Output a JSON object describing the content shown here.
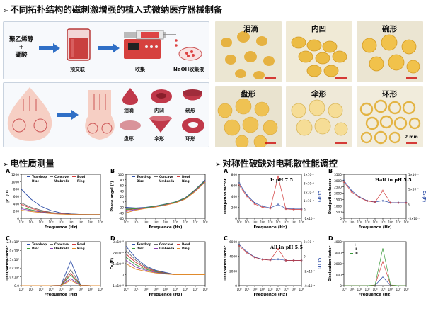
{
  "titles": {
    "main": "不同拓扑结构的磁刺激增强的植入式微纳医疗器械制备",
    "left_section": "电性质测量",
    "right_section": "对称性破缺对电耗散性能调控",
    "arrow": "➢"
  },
  "process": {
    "material_line1": "聚乙烯醇",
    "material_plus": "+",
    "material_line2": "硼酸",
    "step_precrosslink": "预交联",
    "step_collect": "收集",
    "step_naoh": "NaOH收集液"
  },
  "shapes": [
    "泪滴",
    "内凹",
    "碗形",
    "盘形",
    "伞形",
    "环形"
  ],
  "photos": {
    "labels": [
      "泪滴",
      "内凹",
      "碗形",
      "盘形",
      "伞形",
      "环形"
    ],
    "scale": "2 mm"
  },
  "colors": {
    "accent": "#c0394a",
    "photo_bg": "#ede6c8",
    "particle": "#e8b23a"
  },
  "left_charts": [
    {
      "letter": "A",
      "type": "line",
      "ylabel": "|Z| (Ω)",
      "xlabel": "Frequence (Hz)",
      "yticks": [
        "0",
        "200",
        "400",
        "600",
        "800",
        "1000",
        "1200"
      ],
      "xticks": [
        "10⁰",
        "10¹",
        "10²",
        "10³",
        "10⁴",
        "10⁵",
        "10⁶",
        "10⁷",
        "10⁸"
      ],
      "legend": [
        "Teardrop",
        "Concave",
        "Bowl",
        "Disc",
        "Umbrella",
        "Ring"
      ]
    },
    {
      "letter": "B",
      "type": "line",
      "ylabel": "Phase angel (°)",
      "xlabel": "Frequence (Hz)",
      "yticks": [
        "-60",
        "-40",
        "-20",
        "0",
        "20",
        "40",
        "60",
        "80",
        "100"
      ],
      "xticks": [
        "10⁰",
        "10¹",
        "10²",
        "10³",
        "10⁴",
        "10⁵",
        "10⁶",
        "10⁷",
        "10⁸"
      ],
      "legend": [
        "Teardrop",
        "Concave",
        "Bowl",
        "Disc",
        "Umbrella",
        "Ring"
      ]
    },
    {
      "letter": "C",
      "type": "line",
      "ylabel": "Dissipation factor",
      "xlabel": "Frequence (Hz)",
      "yticks": [
        "0.0",
        "5.0×10³",
        "1.0×10⁴",
        "1.5×10⁴",
        "2.0×10⁴",
        "2.5×10⁴"
      ],
      "xticks": [
        "10⁰",
        "10¹",
        "10²",
        "10³",
        "10⁴",
        "10⁵",
        "10⁶",
        "10⁷",
        "10⁸"
      ],
      "legend": [
        "Teardrop",
        "Concave",
        "Bowl",
        "Disc",
        "Umbrella",
        "Ring"
      ]
    },
    {
      "letter": "D",
      "type": "line",
      "ylabel": "Cs (F)",
      "xlabel": "Frequence (Hz)",
      "yticks": [
        "-1×10⁻⁸",
        "0",
        "1×10⁻⁸",
        "2×10⁻⁸",
        "3×10⁻⁸"
      ],
      "xticks": [
        "10⁰",
        "10¹",
        "10²",
        "10³",
        "10⁴",
        "10⁵",
        "10⁶",
        "10⁷",
        "10⁸"
      ],
      "legend": [
        "Teardrop",
        "Concave",
        "Bowl",
        "Disc",
        "Umbrella",
        "Ring"
      ]
    }
  ],
  "right_charts": [
    {
      "letter": "A",
      "label": "I: pH 7.5",
      "ylabel": "Dissipation factor",
      "y2label": "Cs (F)",
      "xlabel": "Frequence (Hz)",
      "yticks": [
        "0",
        "200",
        "400",
        "600",
        "800"
      ],
      "y2ticks": [
        "-1×10⁻⁸",
        "0",
        "1×10⁻⁸",
        "2×10⁻⁸",
        "3×10⁻⁸",
        "4×10⁻⁸"
      ]
    },
    {
      "letter": "B",
      "label": "Half in pH 5.5",
      "ylabel": "Dissipation factor",
      "y2label": "Cs (F)",
      "xlabel": "Frequence (Hz)",
      "yticks": [
        "0",
        "500",
        "1000",
        "1500",
        "2000",
        "2500",
        "3000",
        "3500"
      ],
      "y2ticks": [
        "-5×10⁻⁹",
        "0",
        "5×10⁻⁹",
        "1×10⁻⁸"
      ]
    },
    {
      "letter": "C",
      "label": "All in pH 5.5",
      "ylabel": "Dissipation factor",
      "y2label": "Cs (F)",
      "xlabel": "Frequence (Hz)",
      "yticks": [
        "0",
        "2000",
        "4000",
        "6000"
      ],
      "y2ticks": [
        "-4×10⁻⁸",
        "-2×10⁻⁸",
        "0",
        "2×10⁻⁸"
      ]
    },
    {
      "letter": "D",
      "label": "",
      "ylabel": "Dissipation factor",
      "xlabel": "Frequence (Hz)",
      "yticks": [
        "0",
        "1000",
        "2000",
        "3000",
        "4000"
      ],
      "legend": [
        "I",
        "II",
        "III"
      ]
    }
  ],
  "xticks_right": [
    "10⁰",
    "10¹",
    "10²",
    "10³",
    "10⁴",
    "10⁵",
    "10⁶",
    "10⁷",
    "10⁸"
  ],
  "chart_data": [
    {
      "type": "line",
      "title": "A",
      "xlabel": "Frequence (Hz)",
      "ylabel": "|Z| (Ω)",
      "ylim": [
        0,
        1200
      ],
      "x": [
        1,
        10,
        100,
        1000,
        10000,
        100000,
        1000000,
        10000000,
        100000000
      ],
      "series": [
        {
          "name": "Teardrop",
          "values": [
            800,
            520,
            330,
            210,
            150,
            120,
            105,
            100,
            100
          ]
        },
        {
          "name": "Concave",
          "values": [
            420,
            300,
            220,
            160,
            130,
            115,
            105,
            100,
            100
          ]
        },
        {
          "name": "Bowl",
          "values": [
            380,
            270,
            200,
            150,
            125,
            110,
            102,
            100,
            100
          ]
        },
        {
          "name": "Disc",
          "values": [
            300,
            230,
            180,
            140,
            120,
            108,
            100,
            100,
            100
          ]
        },
        {
          "name": "Umbrella",
          "values": [
            260,
            210,
            170,
            135,
            118,
            106,
            100,
            100,
            100
          ]
        },
        {
          "name": "Ring",
          "values": [
            220,
            185,
            155,
            128,
            112,
            104,
            100,
            100,
            100
          ]
        }
      ]
    },
    {
      "type": "line",
      "title": "B",
      "xlabel": "Frequence (Hz)",
      "ylabel": "Phase angel (°)",
      "ylim": [
        -60,
        100
      ],
      "x": [
        1,
        10,
        100,
        1000,
        10000,
        100000,
        1000000,
        10000000,
        100000000
      ],
      "series": [
        {
          "name": "Teardrop",
          "values": [
            -20,
            -22,
            -20,
            -15,
            -8,
            0,
            15,
            45,
            80
          ]
        },
        {
          "name": "Concave",
          "values": [
            -25,
            -24,
            -21,
            -16,
            -9,
            -1,
            14,
            44,
            78
          ]
        },
        {
          "name": "Bowl",
          "values": [
            -30,
            -26,
            -22,
            -17,
            -10,
            -2,
            12,
            42,
            76
          ]
        },
        {
          "name": "Disc",
          "values": [
            -28,
            -25,
            -21,
            -16,
            -9,
            -1,
            13,
            43,
            77
          ]
        },
        {
          "name": "Umbrella",
          "values": [
            -35,
            -28,
            -23,
            -18,
            -11,
            -3,
            11,
            40,
            74
          ]
        },
        {
          "name": "Ring",
          "values": [
            -40,
            -30,
            -24,
            -19,
            -12,
            -4,
            10,
            38,
            72
          ]
        }
      ]
    },
    {
      "type": "line",
      "title": "C",
      "xlabel": "Frequence (Hz)",
      "ylabel": "Dissipation factor",
      "ylim": [
        0,
        25000
      ],
      "x": [
        1,
        10,
        100,
        1000,
        10000,
        100000,
        1000000,
        10000000,
        100000000
      ],
      "series": [
        {
          "name": "Teardrop",
          "values": [
            0,
            0,
            0,
            0,
            200,
            14000,
            300,
            0,
            0
          ]
        },
        {
          "name": "Concave",
          "values": [
            0,
            0,
            0,
            0,
            150,
            9000,
            250,
            0,
            0
          ]
        },
        {
          "name": "Bowl",
          "values": [
            0,
            0,
            0,
            0,
            120,
            7000,
            200,
            0,
            0
          ]
        },
        {
          "name": "Disc",
          "values": [
            0,
            0,
            0,
            0,
            100,
            6000,
            180,
            0,
            0
          ]
        },
        {
          "name": "Umbrella",
          "values": [
            0,
            0,
            0,
            0,
            90,
            4000,
            150,
            0,
            0
          ]
        },
        {
          "name": "Ring",
          "values": [
            0,
            0,
            0,
            0,
            80,
            3000,
            120,
            0,
            0
          ]
        }
      ]
    },
    {
      "type": "line",
      "title": "D",
      "xlabel": "Frequence (Hz)",
      "ylabel": "Cs (F)",
      "ylim": [
        -1e-08,
        3e-08
      ],
      "x": [
        1,
        10,
        100,
        1000,
        10000,
        100000,
        1000000,
        10000000,
        100000000
      ],
      "series": [
        {
          "name": "Teardrop",
          "values": [
            2.6e-08,
            1.5e-08,
            8e-09,
            4e-09,
            2e-09,
            0,
            0,
            0,
            0
          ]
        },
        {
          "name": "Concave",
          "values": [
            2.2e-08,
            1.3e-08,
            7e-09,
            3.5e-09,
            1.5e-09,
            0,
            0,
            0,
            0
          ]
        },
        {
          "name": "Bowl",
          "values": [
            1.9e-08,
            1.1e-08,
            6e-09,
            3e-09,
            1.2e-09,
            0,
            0,
            0,
            0
          ]
        },
        {
          "name": "Disc",
          "values": [
            1.6e-08,
            9e-09,
            5e-09,
            2.5e-09,
            1e-09,
            0,
            0,
            0,
            0
          ]
        },
        {
          "name": "Umbrella",
          "values": [
            1.3e-08,
            7e-09,
            4e-09,
            2e-09,
            8e-10,
            0,
            0,
            0,
            0
          ]
        },
        {
          "name": "Ring",
          "values": [
            1e-08,
            5e-09,
            3e-09,
            1.5e-09,
            5e-10,
            0,
            0,
            0,
            0
          ]
        }
      ]
    },
    {
      "type": "line",
      "title": "I: pH 7.5",
      "xlabel": "Frequence (Hz)",
      "ylabel": "Dissipation factor",
      "ylim": [
        0,
        800
      ],
      "x": [
        1,
        10,
        100,
        1000,
        10000,
        100000,
        1000000,
        10000000,
        100000000
      ],
      "series": [
        {
          "name": "Dissipation factor",
          "values": [
            640,
            420,
            280,
            220,
            190,
            250,
            180,
            170,
            170
          ]
        },
        {
          "name": "Cs (F)",
          "values": [
            600,
            400,
            260,
            200,
            180,
            760,
            170,
            160,
            160
          ]
        }
      ]
    },
    {
      "type": "line",
      "title": "Half in pH 5.5",
      "xlabel": "Frequence (Hz)",
      "ylabel": "Dissipation factor",
      "ylim": [
        0,
        3500
      ],
      "x": [
        1,
        10,
        100,
        1000,
        10000,
        100000,
        1000000,
        10000000,
        100000000
      ],
      "series": [
        {
          "name": "Dissipation factor",
          "values": [
            3000,
            2200,
            1700,
            1400,
            1300,
            1400,
            1250,
            1250,
            1250
          ]
        },
        {
          "name": "Cs (F)",
          "values": [
            2900,
            2100,
            1650,
            1380,
            1280,
            2200,
            1230,
            1230,
            1230
          ]
        }
      ]
    },
    {
      "type": "line",
      "title": "All in pH 5.5",
      "xlabel": "Frequence (Hz)",
      "ylabel": "Dissipation factor",
      "ylim": [
        0,
        6000
      ],
      "x": [
        1,
        10,
        100,
        1000,
        10000,
        100000,
        1000000,
        10000000,
        100000000
      ],
      "series": [
        {
          "name": "Dissipation factor",
          "values": [
            5600,
            4600,
            3900,
            3600,
            3500,
            3600,
            3450,
            3450,
            3450
          ]
        },
        {
          "name": "Cs (F)",
          "values": [
            5400,
            4500,
            3850,
            3550,
            3480,
            5000,
            3430,
            3430,
            3430
          ]
        }
      ]
    },
    {
      "type": "line",
      "title": "D",
      "xlabel": "Frequence (Hz)",
      "ylabel": "Dissipation factor",
      "ylim": [
        0,
        4000
      ],
      "x": [
        1,
        10,
        100,
        1000,
        10000,
        100000,
        1000000,
        10000000,
        100000000
      ],
      "series": [
        {
          "name": "I",
          "values": [
            0,
            0,
            0,
            0,
            20,
            800,
            20,
            0,
            0
          ]
        },
        {
          "name": "II",
          "values": [
            0,
            0,
            0,
            0,
            40,
            2200,
            40,
            0,
            0
          ]
        },
        {
          "name": "III",
          "values": [
            0,
            0,
            0,
            0,
            60,
            3400,
            60,
            0,
            0
          ]
        }
      ]
    }
  ]
}
